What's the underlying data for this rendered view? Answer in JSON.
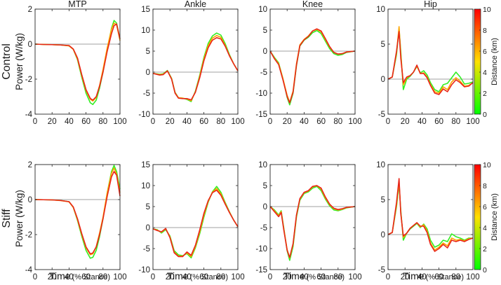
{
  "figure": {
    "row_labels": [
      "Control",
      "Stiff"
    ],
    "ylabel": "Power (W/kg)",
    "xlabel_main": "Time",
    "xlabel_sub": "(% Stance)",
    "colorbar_label": "Distance (km)",
    "colorbar_ticks": [
      "0",
      "2",
      "4",
      "6",
      "8",
      "10"
    ]
  },
  "chart_data": [
    {
      "type": "line",
      "title": "MTP",
      "row": "Control",
      "xlim": [
        0,
        100
      ],
      "ylim": [
        -4,
        2
      ],
      "yticks": [
        -4,
        -2,
        0,
        2
      ],
      "xticks": [
        0,
        20,
        40,
        60,
        80,
        100
      ],
      "zero_line": true,
      "x": [
        0,
        10,
        20,
        30,
        40,
        45,
        50,
        55,
        60,
        65,
        68,
        72,
        76,
        80,
        85,
        90,
        93,
        96,
        100
      ],
      "series": [
        {
          "name": "0 km",
          "color": "#33ee22",
          "values": [
            0,
            -0.02,
            -0.03,
            -0.05,
            -0.1,
            -0.3,
            -0.9,
            -1.9,
            -2.8,
            -3.35,
            -3.45,
            -3.2,
            -2.5,
            -1.6,
            -0.3,
            0.9,
            1.35,
            1.2,
            0.3
          ]
        },
        {
          "name": "5 km",
          "color": "#ffa500",
          "values": [
            0,
            -0.02,
            -0.03,
            -0.05,
            -0.1,
            -0.3,
            -0.85,
            -1.8,
            -2.65,
            -3.15,
            -3.25,
            -3.05,
            -2.35,
            -1.45,
            -0.2,
            0.85,
            1.2,
            1.1,
            0.2
          ]
        },
        {
          "name": "10 km",
          "color": "#e8261a",
          "values": [
            0,
            -0.02,
            -0.03,
            -0.05,
            -0.08,
            -0.28,
            -0.8,
            -1.75,
            -2.6,
            -3.1,
            -3.2,
            -3.0,
            -2.4,
            -1.6,
            -0.4,
            0.6,
            1.05,
            1.15,
            0.3
          ]
        }
      ]
    },
    {
      "type": "line",
      "title": "Ankle",
      "row": "Control",
      "xlim": [
        0,
        100
      ],
      "ylim": [
        -10,
        15
      ],
      "yticks": [
        -10,
        -5,
        0,
        5,
        10,
        15
      ],
      "xticks": [
        0,
        20,
        40,
        60,
        80,
        100
      ],
      "zero_line": true,
      "x": [
        0,
        8,
        12,
        17,
        22,
        26,
        30,
        35,
        40,
        45,
        50,
        55,
        60,
        65,
        70,
        75,
        80,
        85,
        90,
        95,
        100
      ],
      "series": [
        {
          "name": "0 km",
          "color": "#33ee22",
          "values": [
            -0.3,
            -0.5,
            -0.4,
            0.4,
            -1.5,
            -4.8,
            -6.1,
            -6.2,
            -6.5,
            -7.0,
            -4.5,
            -0.8,
            3.5,
            6.8,
            8.6,
            9.3,
            8.8,
            6.8,
            4.2,
            2.0,
            0.3
          ]
        },
        {
          "name": "5 km",
          "color": "#ffa500",
          "values": [
            -0.3,
            -0.6,
            -0.5,
            0.3,
            -1.6,
            -4.9,
            -6.1,
            -6.2,
            -6.4,
            -6.8,
            -4.7,
            -1.1,
            3.1,
            6.3,
            8.1,
            8.7,
            8.3,
            6.4,
            4.0,
            2.0,
            0.3
          ]
        },
        {
          "name": "10 km",
          "color": "#e8261a",
          "values": [
            -0.3,
            -0.7,
            -0.6,
            0.3,
            -1.7,
            -5.0,
            -6.2,
            -6.3,
            -6.3,
            -6.6,
            -4.8,
            -1.4,
            2.7,
            5.8,
            7.6,
            8.2,
            7.9,
            6.2,
            3.9,
            2.0,
            0.3
          ]
        }
      ]
    },
    {
      "type": "line",
      "title": "Knee",
      "row": "Control",
      "xlim": [
        0,
        100
      ],
      "ylim": [
        -15,
        10
      ],
      "yticks": [
        -15,
        -10,
        -5,
        0,
        5,
        10
      ],
      "xticks": [
        0,
        20,
        40,
        60,
        80,
        100
      ],
      "zero_line": true,
      "x": [
        0,
        5,
        10,
        15,
        20,
        23,
        27,
        31,
        35,
        40,
        45,
        50,
        55,
        60,
        65,
        70,
        75,
        80,
        85,
        90,
        100
      ],
      "series": [
        {
          "name": "0 km",
          "color": "#33ee22",
          "values": [
            0,
            -1.5,
            -2.8,
            -6.5,
            -11,
            -12.8,
            -10,
            -3.5,
            1.2,
            2.6,
            3.3,
            4.4,
            4.9,
            4.2,
            2.4,
            0.6,
            -0.6,
            -1.0,
            -0.8,
            -0.3,
            0
          ]
        },
        {
          "name": "5 km",
          "color": "#ffa500",
          "values": [
            0,
            -1.7,
            -3.0,
            -6.5,
            -10.5,
            -12.2,
            -9.5,
            -3.0,
            1.5,
            2.8,
            3.6,
            4.8,
            5.2,
            4.6,
            2.8,
            1.0,
            -0.3,
            -0.7,
            -0.6,
            -0.2,
            0
          ]
        },
        {
          "name": "10 km",
          "color": "#e8261a",
          "values": [
            0,
            -1.8,
            -3.2,
            -6.8,
            -10.8,
            -12.3,
            -9.8,
            -3.3,
            1.3,
            2.7,
            3.5,
            4.8,
            5.3,
            4.8,
            3.0,
            1.1,
            -0.3,
            -0.7,
            -0.6,
            -0.2,
            0
          ]
        }
      ]
    },
    {
      "type": "line",
      "title": "Hip",
      "row": "Control",
      "xlim": [
        0,
        100
      ],
      "ylim": [
        -5,
        10
      ],
      "yticks": [
        -5,
        0,
        5,
        10
      ],
      "xticks": [
        0,
        20,
        40,
        60,
        80,
        100
      ],
      "zero_line": true,
      "x": [
        0,
        5,
        10,
        13,
        15,
        18,
        22,
        26,
        30,
        34,
        38,
        42,
        46,
        50,
        55,
        60,
        65,
        70,
        75,
        80,
        85,
        90,
        95,
        100
      ],
      "series": [
        {
          "name": "0 km",
          "color": "#33ee22",
          "values": [
            0,
            0.3,
            3.5,
            7.2,
            4.0,
            -1.5,
            0,
            0.4,
            1.0,
            1.8,
            0.9,
            1.2,
            0.6,
            -0.5,
            -1.5,
            -1.8,
            -0.8,
            -0.6,
            0.2,
            1.0,
            0.3,
            -0.7,
            -0.6,
            -0.4
          ]
        },
        {
          "name": "5 km",
          "color": "#ffa500",
          "values": [
            0,
            0.3,
            3.8,
            7.5,
            3.5,
            -0.8,
            0.2,
            0.5,
            1.0,
            1.9,
            0.8,
            0.9,
            0.3,
            -0.8,
            -1.8,
            -2.0,
            -1.1,
            -1.5,
            -0.4,
            0.2,
            -0.3,
            -1.0,
            -0.9,
            -0.5
          ]
        },
        {
          "name": "10 km",
          "color": "#e8261a",
          "values": [
            0,
            0.3,
            4.0,
            6.8,
            3.0,
            -0.5,
            0.3,
            0.5,
            1.0,
            2.0,
            0.8,
            0.8,
            0.2,
            -0.9,
            -2.0,
            -2.2,
            -1.4,
            -1.8,
            -0.8,
            -0.1,
            -0.5,
            -1.1,
            -1.0,
            -0.5
          ]
        }
      ]
    },
    {
      "type": "line",
      "title": "",
      "row": "Stiff",
      "xlim": [
        0,
        100
      ],
      "ylim": [
        -4,
        2
      ],
      "yticks": [
        -4,
        -2,
        0,
        2
      ],
      "xticks": [
        0,
        20,
        40,
        60,
        80,
        100
      ],
      "zero_line": true,
      "x": [
        0,
        10,
        20,
        30,
        40,
        45,
        50,
        55,
        60,
        65,
        68,
        72,
        76,
        80,
        85,
        90,
        93,
        96,
        100
      ],
      "series": [
        {
          "name": "0 km",
          "color": "#33ee22",
          "values": [
            0,
            -0.01,
            -0.02,
            -0.05,
            -0.12,
            -0.45,
            -1.2,
            -2.1,
            -2.9,
            -3.35,
            -3.3,
            -2.9,
            -2.1,
            -1.1,
            0.4,
            1.6,
            1.95,
            1.6,
            0.6
          ]
        },
        {
          "name": "5 km",
          "color": "#ffa500",
          "values": [
            0,
            -0.01,
            -0.02,
            -0.06,
            -0.13,
            -0.45,
            -1.15,
            -2.0,
            -2.75,
            -3.15,
            -3.1,
            -2.7,
            -1.9,
            -1.0,
            0.4,
            1.5,
            1.8,
            1.45,
            0.4
          ]
        },
        {
          "name": "10 km",
          "color": "#e8261a",
          "values": [
            0,
            -0.01,
            -0.02,
            -0.05,
            -0.12,
            -0.42,
            -1.1,
            -1.95,
            -2.7,
            -3.1,
            -3.05,
            -2.7,
            -2.0,
            -1.1,
            0.2,
            1.3,
            1.6,
            1.4,
            0.2
          ]
        }
      ]
    },
    {
      "type": "line",
      "title": "",
      "row": "Stiff",
      "xlim": [
        0,
        100
      ],
      "ylim": [
        -10,
        15
      ],
      "yticks": [
        -10,
        -5,
        0,
        5,
        10,
        15
      ],
      "xticks": [
        0,
        20,
        40,
        60,
        80,
        100
      ],
      "zero_line": true,
      "x": [
        0,
        5,
        10,
        15,
        20,
        25,
        30,
        35,
        40,
        45,
        50,
        55,
        60,
        65,
        70,
        75,
        80,
        85,
        90,
        95,
        100
      ],
      "series": [
        {
          "name": "0 km",
          "color": "#33ee22",
          "values": [
            -0.3,
            -0.5,
            -1.3,
            -0.5,
            -2.0,
            -5.5,
            -6.5,
            -6.7,
            -6.2,
            -7.2,
            -4.8,
            -1.5,
            2.5,
            6.0,
            8.5,
            9.8,
            8.4,
            6.0,
            3.8,
            1.8,
            0.2
          ]
        },
        {
          "name": "5 km",
          "color": "#ffa500",
          "values": [
            -0.3,
            -0.6,
            -1.1,
            -0.3,
            -2.2,
            -5.8,
            -6.8,
            -6.8,
            -6.0,
            -6.9,
            -4.5,
            -1.0,
            3.0,
            6.2,
            8.4,
            9.3,
            8.0,
            5.8,
            3.7,
            1.8,
            0.2
          ]
        },
        {
          "name": "10 km",
          "color": "#e8261a",
          "values": [
            -0.3,
            -0.7,
            -1.0,
            -0.2,
            -2.4,
            -6.0,
            -6.9,
            -6.9,
            -5.8,
            -6.6,
            -4.2,
            -0.6,
            3.4,
            6.4,
            8.3,
            8.9,
            7.7,
            5.6,
            3.6,
            1.8,
            0.2
          ]
        }
      ]
    },
    {
      "type": "line",
      "title": "",
      "row": "Stiff",
      "xlim": [
        0,
        100
      ],
      "ylim": [
        -15,
        10
      ],
      "yticks": [
        -15,
        -10,
        -5,
        0,
        5,
        10
      ],
      "xticks": [
        0,
        20,
        40,
        60,
        80,
        100
      ],
      "zero_line": true,
      "x": [
        0,
        5,
        10,
        13,
        16,
        20,
        23,
        27,
        31,
        35,
        40,
        45,
        50,
        55,
        60,
        65,
        70,
        75,
        80,
        85,
        90,
        100
      ],
      "series": [
        {
          "name": "0 km",
          "color": "#33ee22",
          "values": [
            0,
            -0.8,
            -2.0,
            -1.0,
            -5.0,
            -10.5,
            -12.8,
            -9.5,
            -2.5,
            1.5,
            3.1,
            3.5,
            4.4,
            4.8,
            3.8,
            1.8,
            0.2,
            -0.8,
            -1.0,
            -0.7,
            -0.3,
            0
          ]
        },
        {
          "name": "5 km",
          "color": "#ffa500",
          "values": [
            0,
            -1.0,
            -2.2,
            -1.2,
            -5.2,
            -10.2,
            -12.2,
            -9.0,
            -2.1,
            1.8,
            3.3,
            3.7,
            4.7,
            5.0,
            4.2,
            2.1,
            0.5,
            -0.5,
            -0.8,
            -0.6,
            -0.2,
            0
          ]
        },
        {
          "name": "10 km",
          "color": "#e8261a",
          "values": [
            0,
            -1.2,
            -2.4,
            -1.4,
            -5.5,
            -10.4,
            -12.1,
            -8.8,
            -2.0,
            1.9,
            3.4,
            3.8,
            4.8,
            5.0,
            4.4,
            2.3,
            0.6,
            -0.4,
            -0.7,
            -0.5,
            -0.2,
            0
          ]
        }
      ]
    },
    {
      "type": "line",
      "title": "",
      "row": "Stiff",
      "xlim": [
        0,
        100
      ],
      "ylim": [
        -5,
        10
      ],
      "yticks": [
        -5,
        0,
        5,
        10
      ],
      "xticks": [
        0,
        20,
        40,
        60,
        80,
        100
      ],
      "zero_line": true,
      "x": [
        0,
        5,
        10,
        13,
        15,
        18,
        22,
        26,
        30,
        34,
        38,
        42,
        46,
        50,
        55,
        60,
        65,
        70,
        75,
        80,
        85,
        90,
        95,
        100
      ],
      "series": [
        {
          "name": "0 km",
          "color": "#33ee22",
          "values": [
            0,
            0.3,
            4.0,
            7.2,
            3.5,
            -0.8,
            0.2,
            0.8,
            1.2,
            1.6,
            1.0,
            1.5,
            0.8,
            -0.8,
            -1.8,
            -1.5,
            -0.8,
            -1.0,
            0.1,
            -0.3,
            -0.5,
            -0.8,
            -0.5,
            -0.5
          ]
        },
        {
          "name": "5 km",
          "color": "#ffa500",
          "values": [
            0,
            0.3,
            4.3,
            7.6,
            3.2,
            -0.4,
            0.2,
            0.9,
            1.3,
            1.7,
            1.1,
            1.4,
            0.5,
            -1.2,
            -2.2,
            -1.8,
            -1.2,
            -1.6,
            -0.5,
            -0.8,
            -0.7,
            -0.9,
            -0.6,
            -0.5
          ]
        },
        {
          "name": "10 km",
          "color": "#e8261a",
          "values": [
            0,
            0.3,
            4.6,
            8.0,
            3.0,
            -0.2,
            0.2,
            0.9,
            1.3,
            1.7,
            1.2,
            1.2,
            0.3,
            -1.4,
            -2.4,
            -2.0,
            -1.4,
            -1.9,
            -0.8,
            -1.0,
            -0.8,
            -1.0,
            -0.7,
            -0.5
          ]
        }
      ]
    }
  ]
}
